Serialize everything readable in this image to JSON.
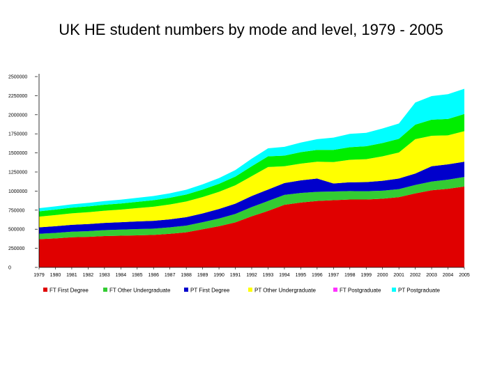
{
  "page": {
    "title": "UK HE student numbers by mode and level, 1979 - 2005"
  },
  "chart_data": {
    "type": "area",
    "stacked": true,
    "title": "UK HE student numbers by mode and level, 1979 - 2005",
    "xlabel": "",
    "ylabel": "",
    "categories": [
      "1979",
      "1980",
      "1981",
      "1982",
      "1983",
      "1984",
      "1985",
      "1986",
      "1987",
      "1988",
      "1989",
      "1990",
      "1991",
      "1992",
      "1993",
      "1994",
      "1995",
      "1996",
      "1997",
      "1998",
      "1999",
      "2000",
      "2001",
      "2002",
      "2003",
      "2004",
      "2005"
    ],
    "ylim": [
      0,
      2500000
    ],
    "y_ticks": [
      "0",
      "250000",
      "500000",
      "750000",
      "1000000",
      "1250000",
      "1500000",
      "1750000",
      "2000000",
      "2250000",
      "2500000"
    ],
    "y_tick_values": [
      0,
      250000,
      500000,
      750000,
      1000000,
      1250000,
      1500000,
      1750000,
      2000000,
      2250000,
      2500000
    ],
    "legend_position": "bottom",
    "series": [
      {
        "name": "FT First Degree",
        "color": "#e00000",
        "values": [
          370000,
          380000,
          395000,
          400000,
          410000,
          415000,
          420000,
          425000,
          440000,
          460000,
          500000,
          540000,
          590000,
          670000,
          740000,
          820000,
          850000,
          870000,
          880000,
          890000,
          890000,
          900000,
          920000,
          970000,
          1010000,
          1030000,
          1060000
        ]
      },
      {
        "name": "FT Other Undergraduate",
        "color": "#33cc33",
        "values": [
          70000,
          72000,
          73000,
          75000,
          78000,
          80000,
          82000,
          83000,
          85000,
          88000,
          92000,
          100000,
          110000,
          120000,
          130000,
          130000,
          125000,
          120000,
          115000,
          110000,
          108000,
          105000,
          105000,
          110000,
          115000,
          120000,
          125000
        ]
      },
      {
        "name": "PT First Degree",
        "color": "#0000cc",
        "values": [
          85000,
          88000,
          90000,
          93000,
          95000,
          97000,
          100000,
          102000,
          105000,
          110000,
          115000,
          125000,
          135000,
          145000,
          150000,
          155000,
          165000,
          175000,
          105000,
          115000,
          120000,
          130000,
          140000,
          150000,
          200000,
          200000,
          200000
        ]
      },
      {
        "name": "PT Other Undergraduate",
        "color": "#ffff00",
        "values": [
          140000,
          145000,
          150000,
          155000,
          160000,
          165000,
          175000,
          185000,
          195000,
          205000,
          215000,
          225000,
          240000,
          260000,
          295000,
          220000,
          220000,
          220000,
          280000,
          295000,
          300000,
          320000,
          340000,
          450000,
          400000,
          380000,
          400000
        ]
      },
      {
        "name": "FT Postgraduate",
        "color": "#ff33ff",
        "values": [
          0,
          0,
          0,
          0,
          0,
          0,
          0,
          0,
          0,
          0,
          0,
          0,
          0,
          0,
          0,
          0,
          0,
          0,
          0,
          0,
          0,
          0,
          0,
          0,
          0,
          0,
          0
        ]
      },
      {
        "name": "",
        "color": "#00ee00",
        "values": [
          70000,
          72000,
          74000,
          76000,
          78000,
          80000,
          82000,
          85000,
          88000,
          92000,
          98000,
          105000,
          115000,
          130000,
          140000,
          140000,
          150000,
          155000,
          160000,
          165000,
          170000,
          175000,
          180000,
          190000,
          210000,
          215000,
          225000
        ]
      },
      {
        "name": "PT Postgraduate",
        "color": "#00ffff",
        "values": [
          40000,
          42000,
          44000,
          46000,
          48000,
          50000,
          52000,
          55000,
          58000,
          62000,
          68000,
          75000,
          85000,
          100000,
          105000,
          115000,
          125000,
          140000,
          160000,
          175000,
          175000,
          190000,
          200000,
          290000,
          310000,
          325000,
          330000
        ]
      }
    ]
  }
}
